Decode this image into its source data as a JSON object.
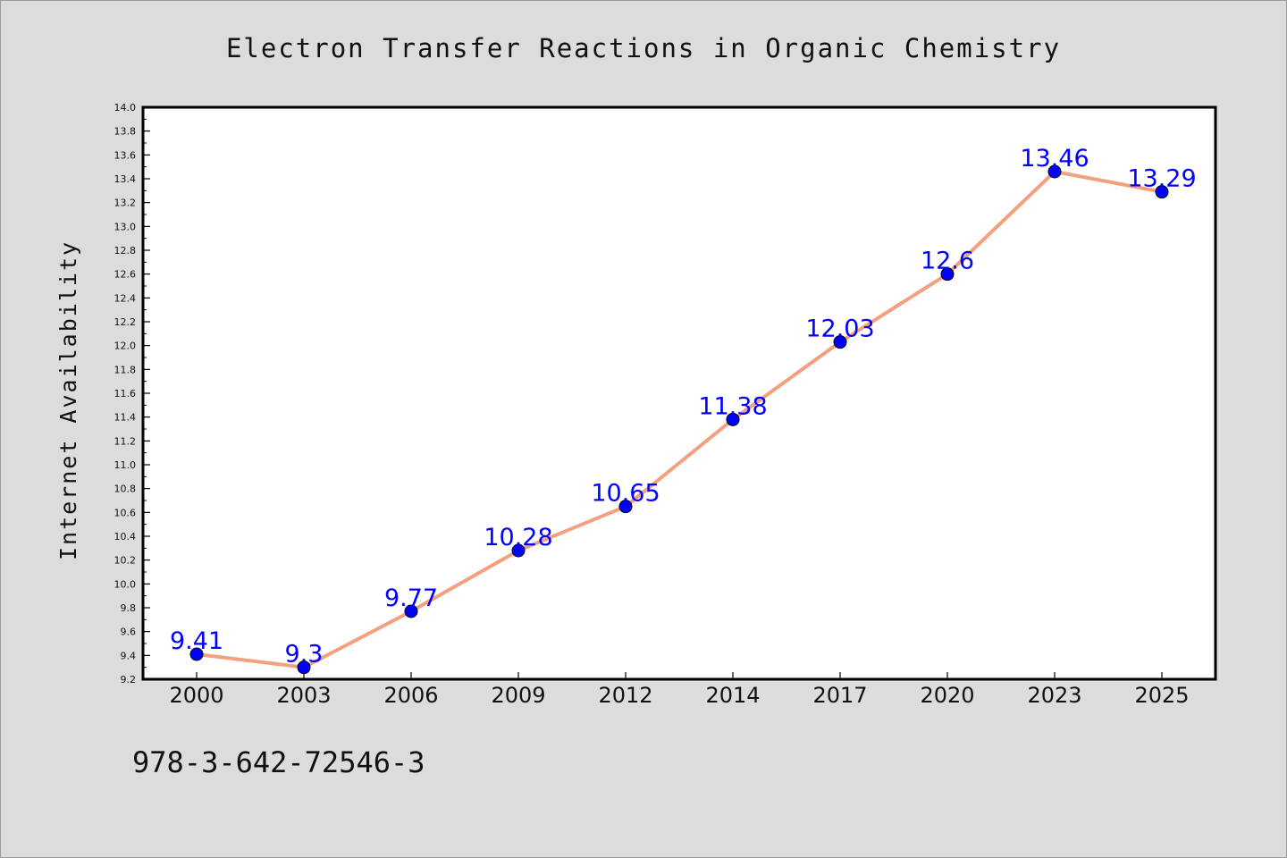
{
  "chart_data": {
    "type": "line",
    "title": "Electron Transfer Reactions in Organic Chemistry",
    "xlabel": "",
    "ylabel": "Internet Availability",
    "categories": [
      "2000",
      "2003",
      "2006",
      "2009",
      "2012",
      "2014",
      "2017",
      "2020",
      "2023",
      "2025"
    ],
    "series": [
      {
        "values": [
          9.41,
          9.3,
          9.77,
          10.28,
          10.65,
          11.38,
          12.03,
          12.6,
          13.46,
          13.29
        ],
        "data_labels": [
          "9.41",
          "9.3",
          "9.77",
          "10.28",
          "10.65",
          "11.38",
          "12.03",
          "12.6",
          "13.46",
          "13.29"
        ]
      }
    ],
    "ylim": [
      9.2,
      14.0
    ],
    "yticks": [
      "9.2",
      "9.4",
      "9.6",
      "9.8",
      "10.0",
      "10.2",
      "10.4",
      "10.6",
      "10.8",
      "11.0",
      "11.2",
      "11.4",
      "11.6",
      "11.8",
      "12.0",
      "12.2",
      "12.4",
      "12.6",
      "12.8",
      "13.0",
      "13.2",
      "13.4",
      "13.6",
      "13.8",
      "14.0"
    ],
    "grid": false,
    "legend": "none",
    "colors": {
      "line": "#f4a07e",
      "marker": "#0000ff",
      "marker_edge": "#000000",
      "data_label": "#0000ff",
      "background": "#dcdcdc",
      "plot_area": "#ffffff"
    }
  },
  "footer": {
    "isbn": "978-3-642-72546-3"
  }
}
